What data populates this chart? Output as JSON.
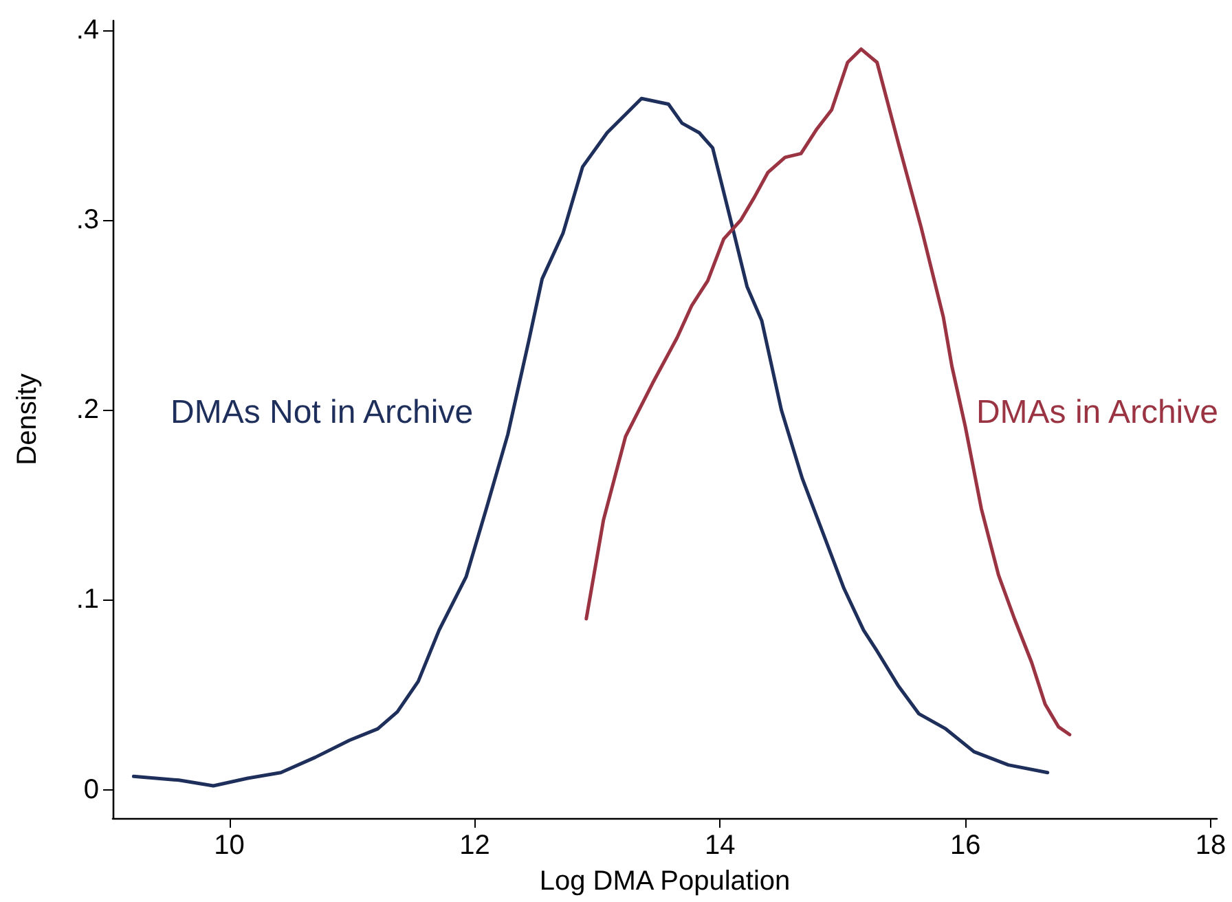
{
  "chart_data": {
    "type": "line",
    "xlabel": "Log DMA Population",
    "ylabel": "Density",
    "xlim": [
      9.05,
      18.05
    ],
    "xticks": [
      10,
      12,
      14,
      16,
      18
    ],
    "ylim": [
      -0.015,
      0.405
    ],
    "yticks": [
      0,
      {
        "value": 0.1,
        "label": ".1"
      },
      {
        "value": 0.2,
        "label": ".2"
      },
      {
        "value": 0.3,
        "label": ".3"
      },
      {
        "value": 0.4,
        "label": ".4"
      }
    ],
    "grid": false,
    "marker": "none",
    "line_style": "solid",
    "series": [
      {
        "name": "DMAs Not in Archive",
        "color": "#1f2f5c",
        "x": [
          9.22,
          9.59,
          9.87,
          10.15,
          10.42,
          10.7,
          10.98,
          11.21,
          11.37,
          11.54,
          11.71,
          11.93,
          12.1,
          12.27,
          12.44,
          12.55,
          12.72,
          12.88,
          13.08,
          13.36,
          13.58,
          13.69,
          13.83,
          13.94,
          14.11,
          14.22,
          14.34,
          14.5,
          14.67,
          14.84,
          15.01,
          15.17,
          15.28,
          15.45,
          15.62,
          15.84,
          16.07,
          16.35,
          16.67
        ],
        "values": [
          0.007,
          0.005,
          0.002,
          0.006,
          0.009,
          0.017,
          0.026,
          0.032,
          0.041,
          0.057,
          0.084,
          0.112,
          0.149,
          0.187,
          0.236,
          0.269,
          0.293,
          0.328,
          0.346,
          0.364,
          0.361,
          0.351,
          0.346,
          0.338,
          0.294,
          0.265,
          0.247,
          0.2,
          0.164,
          0.135,
          0.106,
          0.084,
          0.073,
          0.055,
          0.04,
          0.032,
          0.02,
          0.013,
          0.009
        ]
      },
      {
        "name": "DMAs in Archive",
        "color": "#9b3442",
        "x": [
          12.91,
          13.05,
          13.23,
          13.45,
          13.65,
          13.77,
          13.9,
          14.03,
          14.17,
          14.28,
          14.39,
          14.53,
          14.66,
          14.79,
          14.91,
          15.04,
          15.15,
          15.28,
          15.46,
          15.64,
          15.82,
          15.89,
          16.0,
          16.13,
          16.27,
          16.4,
          16.54,
          16.65,
          16.76,
          16.85
        ],
        "values": [
          0.09,
          0.142,
          0.186,
          0.214,
          0.238,
          0.255,
          0.268,
          0.29,
          0.3,
          0.312,
          0.325,
          0.333,
          0.335,
          0.348,
          0.358,
          0.383,
          0.39,
          0.383,
          0.339,
          0.296,
          0.249,
          0.223,
          0.191,
          0.148,
          0.113,
          0.09,
          0.067,
          0.045,
          0.033,
          0.029
        ]
      }
    ]
  }
}
